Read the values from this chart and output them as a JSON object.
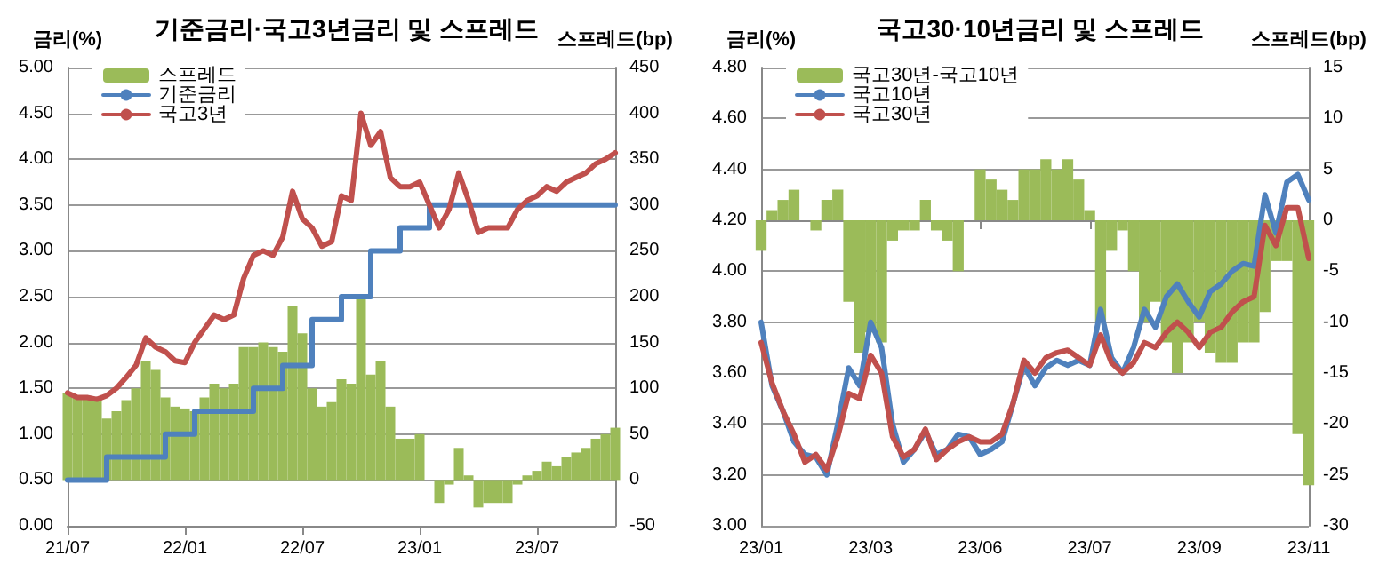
{
  "chart_data": [
    {
      "type": "line",
      "title": "기준금리·국고3년금리 및 스프레드",
      "ylabel": "금리(%)",
      "y2label": "스프레드(bp)",
      "categories": [
        "21/07",
        null,
        null,
        null,
        null,
        null,
        null,
        null,
        null,
        null,
        null,
        null,
        "22/01",
        null,
        null,
        null,
        null,
        null,
        null,
        null,
        null,
        null,
        null,
        null,
        "22/07",
        null,
        null,
        null,
        null,
        null,
        null,
        null,
        null,
        null,
        null,
        null,
        "23/01",
        null,
        null,
        null,
        null,
        null,
        null,
        null,
        null,
        null,
        null,
        null,
        "23/07",
        null,
        null,
        null,
        null,
        null,
        null,
        null,
        null
      ],
      "ylim": [
        0,
        5
      ],
      "yticks": [
        {
          "value": 0,
          "label": "0.00"
        },
        {
          "value": 0.5,
          "label": "0.50"
        },
        {
          "value": 1,
          "label": "1.00"
        },
        {
          "value": 1.5,
          "label": "1.50"
        },
        {
          "value": 2,
          "label": "2.00"
        },
        {
          "value": 2.5,
          "label": "2.50"
        },
        {
          "value": 3,
          "label": "3.00"
        },
        {
          "value": 3.5,
          "label": "3.50"
        },
        {
          "value": 4,
          "label": "4.00"
        },
        {
          "value": 4.5,
          "label": "4.50"
        },
        {
          "value": 5,
          "label": "5.00"
        }
      ],
      "y2lim": [
        -50,
        450
      ],
      "y2ticks": [
        -50,
        0,
        50,
        100,
        150,
        200,
        250,
        300,
        350,
        400,
        450
      ],
      "grid": "y",
      "legend": "top left",
      "marker": "none",
      "line_style": "solid",
      "series": [
        {
          "name": "스프레드",
          "type": "bar",
          "axis": "y2",
          "color": "#9bbb59",
          "values": [
            95,
            90,
            90,
            88,
            67,
            75,
            87,
            100,
            130,
            120,
            90,
            80,
            78,
            75,
            90,
            105,
            100,
            105,
            145,
            145,
            150,
            145,
            140,
            190,
            160,
            100,
            80,
            85,
            110,
            105,
            200,
            115,
            130,
            80,
            45,
            45,
            50,
            0,
            -25,
            -5,
            35,
            5,
            -30,
            -25,
            -25,
            -25,
            -5,
            5,
            10,
            20,
            15,
            25,
            30,
            35,
            45,
            50,
            57
          ]
        },
        {
          "name": "기준금리",
          "type": "step",
          "color": "#4f81bd",
          "values": [
            0.5,
            0.5,
            0.5,
            0.5,
            0.75,
            0.75,
            0.75,
            0.75,
            0.75,
            0.75,
            1,
            1,
            1,
            1.25,
            1.25,
            1.25,
            1.25,
            1.25,
            1.25,
            1.5,
            1.5,
            1.5,
            1.75,
            1.75,
            1.75,
            2.25,
            2.25,
            2.25,
            2.5,
            2.5,
            2.5,
            3,
            3,
            3,
            3.25,
            3.25,
            3.25,
            3.5,
            3.5,
            3.5,
            3.5,
            3.5,
            3.5,
            3.5,
            3.5,
            3.5,
            3.5,
            3.5,
            3.5,
            3.5,
            3.5,
            3.5,
            3.5,
            3.5,
            3.5,
            3.5,
            3.5
          ]
        },
        {
          "name": "국고3년",
          "color": "#c0504d",
          "values": [
            1.45,
            1.4,
            1.4,
            1.38,
            1.42,
            1.5,
            1.62,
            1.75,
            2.05,
            1.95,
            1.9,
            1.8,
            1.78,
            2,
            2.15,
            2.3,
            2.25,
            2.3,
            2.7,
            2.95,
            3,
            2.95,
            3.15,
            3.65,
            3.35,
            3.25,
            3.05,
            3.1,
            3.6,
            3.55,
            4.5,
            4.15,
            4.3,
            3.8,
            3.7,
            3.7,
            3.75,
            3.5,
            3.25,
            3.45,
            3.85,
            3.55,
            3.2,
            3.25,
            3.25,
            3.25,
            3.45,
            3.55,
            3.6,
            3.7,
            3.65,
            3.75,
            3.8,
            3.85,
            3.95,
            4,
            4.07
          ]
        }
      ]
    },
    {
      "type": "line",
      "title": "국고30·10년금리 및 스프레드",
      "ylabel": "금리(%)",
      "y2label": "스프레드(bp)",
      "categories": [
        "23/01",
        null,
        null,
        null,
        null,
        null,
        null,
        null,
        null,
        null,
        "23/03",
        null,
        null,
        null,
        null,
        null,
        null,
        null,
        null,
        null,
        "23/06",
        null,
        null,
        null,
        null,
        null,
        null,
        null,
        null,
        null,
        "23/07",
        null,
        null,
        null,
        null,
        null,
        null,
        null,
        null,
        null,
        "23/09",
        null,
        null,
        null,
        null,
        null,
        null,
        null,
        null,
        null,
        "23/11"
      ],
      "ylim": [
        3,
        4.8
      ],
      "yticks": [
        {
          "value": 3,
          "label": "3.00"
        },
        {
          "value": 3.2,
          "label": "3.20"
        },
        {
          "value": 3.4,
          "label": "3.40"
        },
        {
          "value": 3.6,
          "label": "3.60"
        },
        {
          "value": 3.8,
          "label": "3.80"
        },
        {
          "value": 4,
          "label": "4.00"
        },
        {
          "value": 4.2,
          "label": "4.20"
        },
        {
          "value": 4.4,
          "label": "4.40"
        },
        {
          "value": 4.6,
          "label": "4.60"
        },
        {
          "value": 4.8,
          "label": "4.80"
        }
      ],
      "y2lim": [
        -30,
        15
      ],
      "y2ticks": [
        -30,
        -25,
        -20,
        -15,
        -10,
        -5,
        0,
        5,
        10,
        15
      ],
      "grid": "y",
      "legend": "top left",
      "marker": "none",
      "line_style": "solid",
      "series": [
        {
          "name": "국고30년-국고10년",
          "type": "bar",
          "axis": "y2",
          "color": "#9bbb59",
          "values": [
            -3,
            1,
            2,
            3,
            0,
            -1,
            2,
            3,
            -8,
            -13,
            -11,
            -12,
            -2,
            -1,
            -1,
            2,
            -1,
            -2,
            -5,
            0,
            5,
            4,
            3,
            2,
            5,
            5,
            6,
            5,
            6,
            4,
            1,
            -10,
            -3,
            -1,
            -5,
            -10,
            -8,
            -12,
            -15,
            -12,
            -10,
            -13,
            -14,
            -14,
            -12,
            -12,
            -9,
            -4,
            -4,
            -21,
            -26
          ]
        },
        {
          "name": "국고10년",
          "color": "#4f81bd",
          "values": [
            3.8,
            3.55,
            3.45,
            3.33,
            3.28,
            3.27,
            3.2,
            3.4,
            3.62,
            3.55,
            3.8,
            3.7,
            3.4,
            3.25,
            3.3,
            3.37,
            3.28,
            3.3,
            3.36,
            3.35,
            3.28,
            3.3,
            3.33,
            3.48,
            3.63,
            3.55,
            3.62,
            3.65,
            3.63,
            3.65,
            3.63,
            3.85,
            3.66,
            3.6,
            3.7,
            3.85,
            3.78,
            3.9,
            3.95,
            3.88,
            3.82,
            3.92,
            3.95,
            4,
            4.03,
            4.02,
            4.3,
            4.15,
            4.35,
            4.38,
            4.28
          ]
        },
        {
          "name": "국고30년",
          "color": "#c0504d",
          "values": [
            3.72,
            3.56,
            3.45,
            3.36,
            3.25,
            3.28,
            3.22,
            3.35,
            3.52,
            3.5,
            3.67,
            3.6,
            3.35,
            3.27,
            3.3,
            3.38,
            3.26,
            3.3,
            3.33,
            3.35,
            3.33,
            3.33,
            3.36,
            3.48,
            3.65,
            3.6,
            3.66,
            3.68,
            3.69,
            3.66,
            3.63,
            3.75,
            3.64,
            3.6,
            3.64,
            3.72,
            3.7,
            3.76,
            3.8,
            3.76,
            3.7,
            3.76,
            3.78,
            3.84,
            3.88,
            3.9,
            4.18,
            4.1,
            4.25,
            4.25,
            4.05
          ]
        }
      ]
    }
  ]
}
